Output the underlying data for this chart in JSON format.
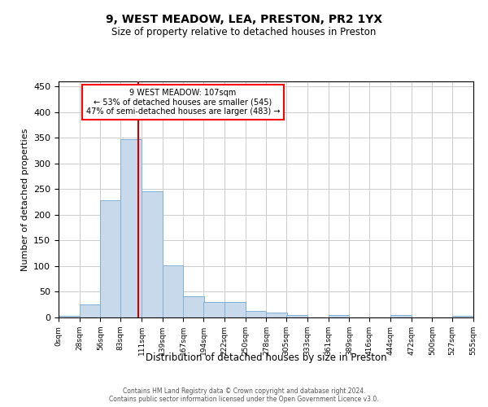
{
  "title": "9, WEST MEADOW, LEA, PRESTON, PR2 1YX",
  "subtitle": "Size of property relative to detached houses in Preston",
  "xlabel": "Distribution of detached houses by size in Preston",
  "ylabel": "Number of detached properties",
  "annotation_line1": "9 WEST MEADOW: 107sqm",
  "annotation_line2": "← 53% of detached houses are smaller (545)",
  "annotation_line3": "47% of semi-detached houses are larger (483) →",
  "property_size": 107,
  "bar_color": "#c9d9ec",
  "bar_edge_color": "#7fafd4",
  "vline_color": "#cc0000",
  "background_color": "#ffffff",
  "grid_color": "#cccccc",
  "bins_left": [
    0,
    28,
    56,
    83,
    111,
    139,
    167,
    194,
    222,
    250,
    278,
    305,
    333,
    361,
    389,
    416,
    444,
    472,
    500,
    527
  ],
  "bin_width": 28,
  "bar_heights": [
    3,
    25,
    228,
    348,
    246,
    101,
    41,
    30,
    30,
    13,
    10,
    5,
    0,
    4,
    0,
    0,
    4,
    0,
    0,
    3
  ],
  "ylim": [
    0,
    460
  ],
  "xlim": [
    0,
    555
  ],
  "yticks": [
    0,
    50,
    100,
    150,
    200,
    250,
    300,
    350,
    400,
    450
  ],
  "xtick_labels": [
    "0sqm",
    "28sqm",
    "56sqm",
    "83sqm",
    "111sqm",
    "139sqm",
    "167sqm",
    "194sqm",
    "222sqm",
    "250sqm",
    "278sqm",
    "305sqm",
    "333sqm",
    "361sqm",
    "389sqm",
    "416sqm",
    "444sqm",
    "472sqm",
    "500sqm",
    "527sqm",
    "555sqm"
  ],
  "footer_line1": "Contains HM Land Registry data © Crown copyright and database right 2024.",
  "footer_line2": "Contains public sector information licensed under the Open Government Licence v3.0.",
  "title_fontsize": 10,
  "subtitle_fontsize": 8.5,
  "ylabel_fontsize": 8,
  "xlabel_fontsize": 8.5,
  "footer_fontsize": 5.5,
  "annotation_fontsize": 7
}
